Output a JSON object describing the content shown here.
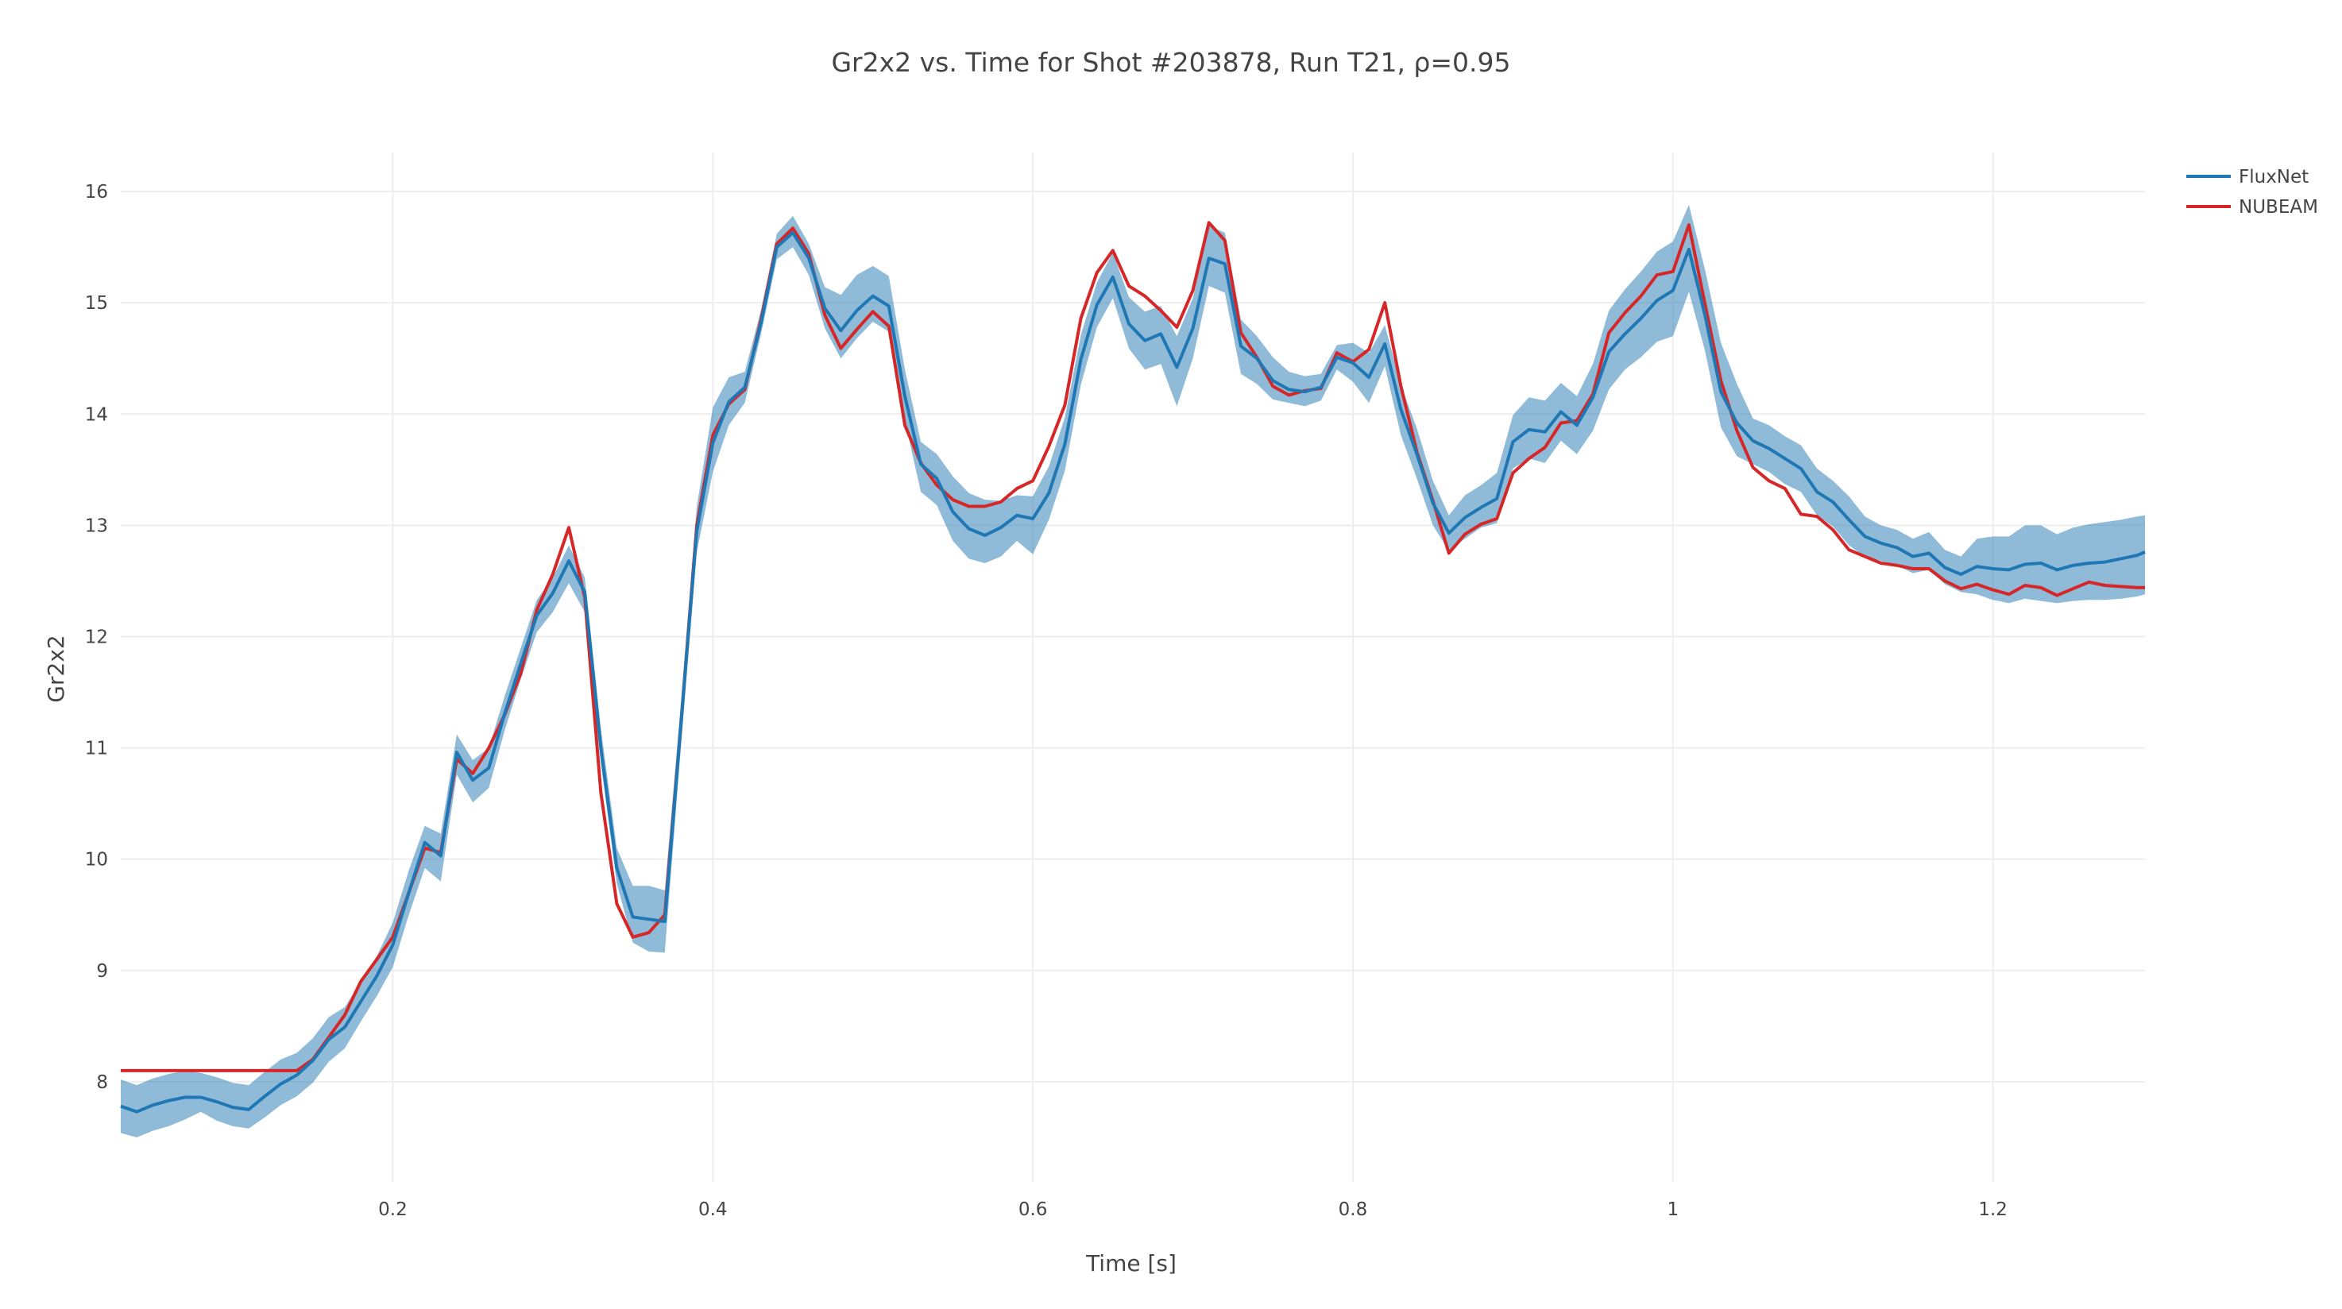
{
  "chart_data": {
    "type": "line",
    "title": "Gr2x2 vs. Time for Shot #203878, Run T21, ρ=0.95",
    "xlabel": "Time [s]",
    "ylabel": "Gr2x2",
    "xlim": [
      0.03,
      1.295
    ],
    "ylim": [
      7.1,
      16.35
    ],
    "xticks": [
      0.2,
      0.4,
      0.6,
      0.8,
      1,
      1.2
    ],
    "xtick_labels": [
      "0.2",
      "0.4",
      "0.6",
      "0.8",
      "1",
      "1.2"
    ],
    "yticks": [
      8,
      9,
      10,
      11,
      12,
      13,
      14,
      15,
      16
    ],
    "ytick_labels": [
      "8",
      "9",
      "10",
      "11",
      "12",
      "13",
      "14",
      "15",
      "16"
    ],
    "grid": true,
    "legend_position": "top-right",
    "colors": {
      "fluxnet": "#1f77b4",
      "band": "#1f77b4",
      "nubeam": "#d62728"
    },
    "series": [
      {
        "name": "FluxNet",
        "color": "#1f77b4",
        "x": [
          0.03,
          0.04,
          0.05,
          0.06,
          0.07,
          0.08,
          0.09,
          0.1,
          0.11,
          0.12,
          0.13,
          0.14,
          0.15,
          0.16,
          0.17,
          0.18,
          0.19,
          0.2,
          0.21,
          0.22,
          0.23,
          0.24,
          0.25,
          0.26,
          0.27,
          0.28,
          0.29,
          0.3,
          0.31,
          0.32,
          0.33,
          0.34,
          0.35,
          0.36,
          0.37,
          0.38,
          0.39,
          0.4,
          0.41,
          0.42,
          0.43,
          0.44,
          0.45,
          0.46,
          0.47,
          0.48,
          0.49,
          0.5,
          0.51,
          0.52,
          0.53,
          0.54,
          0.55,
          0.56,
          0.57,
          0.58,
          0.59,
          0.6,
          0.61,
          0.62,
          0.63,
          0.64,
          0.65,
          0.66,
          0.67,
          0.68,
          0.69,
          0.7,
          0.71,
          0.72,
          0.73,
          0.74,
          0.75,
          0.76,
          0.77,
          0.78,
          0.79,
          0.8,
          0.81,
          0.82,
          0.83,
          0.84,
          0.85,
          0.86,
          0.87,
          0.88,
          0.89,
          0.9,
          0.91,
          0.92,
          0.93,
          0.94,
          0.95,
          0.96,
          0.97,
          0.98,
          0.99,
          1.0,
          1.01,
          1.02,
          1.03,
          1.04,
          1.05,
          1.06,
          1.07,
          1.08,
          1.09,
          1.1,
          1.11,
          1.12,
          1.13,
          1.14,
          1.15,
          1.16,
          1.17,
          1.18,
          1.19,
          1.2,
          1.21,
          1.22,
          1.23,
          1.24,
          1.25,
          1.26,
          1.27,
          1.28,
          1.29,
          1.295
        ],
        "y": [
          7.78,
          7.73,
          7.79,
          7.83,
          7.86,
          7.86,
          7.82,
          7.77,
          7.75,
          7.87,
          7.98,
          8.06,
          8.19,
          8.38,
          8.49,
          8.72,
          8.95,
          9.23,
          9.7,
          10.15,
          10.03,
          10.96,
          10.71,
          10.82,
          11.31,
          11.76,
          12.19,
          12.39,
          12.68,
          12.4,
          11.0,
          9.92,
          9.48,
          9.46,
          9.44,
          11.2,
          12.95,
          13.74,
          14.11,
          14.24,
          14.81,
          15.5,
          15.63,
          15.4,
          14.95,
          14.75,
          14.93,
          15.06,
          14.97,
          14.16,
          13.55,
          13.42,
          13.12,
          12.97,
          12.91,
          12.98,
          13.09,
          13.06,
          13.29,
          13.73,
          14.49,
          14.98,
          15.23,
          14.81,
          14.66,
          14.72,
          14.42,
          14.77,
          15.4,
          15.35,
          14.61,
          14.5,
          14.3,
          14.22,
          14.2,
          14.24,
          14.51,
          14.46,
          14.33,
          14.63,
          14.04,
          13.64,
          13.2,
          12.93,
          13.07,
          13.16,
          13.24,
          13.75,
          13.86,
          13.84,
          14.02,
          13.9,
          14.15,
          14.56,
          14.72,
          14.86,
          15.02,
          15.11,
          15.48,
          14.89,
          14.2,
          13.92,
          13.76,
          13.69,
          13.6,
          13.51,
          13.3,
          13.21,
          13.05,
          12.9,
          12.84,
          12.8,
          12.72,
          12.75,
          12.62,
          12.56,
          12.63,
          12.61,
          12.6,
          12.65,
          12.66,
          12.6,
          12.64,
          12.66,
          12.67,
          12.7,
          12.73,
          12.76
        ]
      },
      {
        "name": "NUBEAM",
        "color": "#d62728",
        "x": [
          0.03,
          0.04,
          0.05,
          0.06,
          0.07,
          0.08,
          0.09,
          0.1,
          0.11,
          0.12,
          0.13,
          0.14,
          0.15,
          0.16,
          0.17,
          0.18,
          0.19,
          0.2,
          0.21,
          0.22,
          0.23,
          0.24,
          0.25,
          0.26,
          0.27,
          0.28,
          0.29,
          0.3,
          0.31,
          0.32,
          0.33,
          0.34,
          0.35,
          0.36,
          0.37,
          0.38,
          0.39,
          0.4,
          0.41,
          0.42,
          0.43,
          0.44,
          0.45,
          0.46,
          0.47,
          0.48,
          0.49,
          0.5,
          0.51,
          0.52,
          0.53,
          0.54,
          0.55,
          0.56,
          0.57,
          0.58,
          0.59,
          0.6,
          0.61,
          0.62,
          0.63,
          0.64,
          0.65,
          0.66,
          0.67,
          0.68,
          0.69,
          0.7,
          0.71,
          0.72,
          0.73,
          0.74,
          0.75,
          0.76,
          0.77,
          0.78,
          0.79,
          0.8,
          0.81,
          0.82,
          0.83,
          0.84,
          0.85,
          0.86,
          0.87,
          0.88,
          0.89,
          0.9,
          0.91,
          0.92,
          0.93,
          0.94,
          0.95,
          0.96,
          0.97,
          0.98,
          0.99,
          1.0,
          1.01,
          1.02,
          1.03,
          1.04,
          1.05,
          1.06,
          1.07,
          1.08,
          1.09,
          1.1,
          1.11,
          1.12,
          1.13,
          1.14,
          1.15,
          1.16,
          1.17,
          1.18,
          1.19,
          1.2,
          1.21,
          1.22,
          1.23,
          1.24,
          1.25,
          1.26,
          1.27,
          1.28,
          1.29,
          1.295
        ],
        "y": [
          8.1,
          8.1,
          8.1,
          8.1,
          8.1,
          8.1,
          8.1,
          8.1,
          8.1,
          8.1,
          8.1,
          8.1,
          8.2,
          8.4,
          8.6,
          8.9,
          9.1,
          9.3,
          9.7,
          10.1,
          10.06,
          10.9,
          10.77,
          11.0,
          11.3,
          11.67,
          12.24,
          12.56,
          12.98,
          12.35,
          10.6,
          9.6,
          9.3,
          9.34,
          9.5,
          11.2,
          13.0,
          13.81,
          14.09,
          14.22,
          14.84,
          15.53,
          15.67,
          15.44,
          14.89,
          14.59,
          14.76,
          14.92,
          14.79,
          13.9,
          13.56,
          13.36,
          13.23,
          13.17,
          13.17,
          13.21,
          13.33,
          13.4,
          13.71,
          14.08,
          14.86,
          15.27,
          15.47,
          15.15,
          15.06,
          14.93,
          14.78,
          15.11,
          15.72,
          15.56,
          14.73,
          14.51,
          14.25,
          14.17,
          14.21,
          14.23,
          14.55,
          14.47,
          14.58,
          15.0,
          14.25,
          13.66,
          13.22,
          12.75,
          12.92,
          13.01,
          13.06,
          13.47,
          13.6,
          13.7,
          13.92,
          13.94,
          14.18,
          14.73,
          14.91,
          15.06,
          15.25,
          15.28,
          15.7,
          14.99,
          14.3,
          13.85,
          13.52,
          13.4,
          13.33,
          13.1,
          13.08,
          12.96,
          12.78,
          12.72,
          12.66,
          12.64,
          12.61,
          12.61,
          12.5,
          12.43,
          12.47,
          12.42,
          12.38,
          12.46,
          12.44,
          12.37,
          12.43,
          12.49,
          12.46,
          12.45,
          12.44,
          12.44
        ]
      }
    ],
    "band": {
      "series": "FluxNet",
      "color": "#1f77b4",
      "opacity": 0.5,
      "x": [
        0.03,
        0.04,
        0.05,
        0.06,
        0.07,
        0.08,
        0.09,
        0.1,
        0.11,
        0.12,
        0.13,
        0.14,
        0.15,
        0.16,
        0.17,
        0.18,
        0.19,
        0.2,
        0.21,
        0.22,
        0.23,
        0.24,
        0.25,
        0.26,
        0.27,
        0.28,
        0.29,
        0.3,
        0.31,
        0.32,
        0.33,
        0.34,
        0.35,
        0.36,
        0.37,
        0.38,
        0.39,
        0.4,
        0.41,
        0.42,
        0.43,
        0.44,
        0.45,
        0.46,
        0.47,
        0.48,
        0.49,
        0.5,
        0.51,
        0.52,
        0.53,
        0.54,
        0.55,
        0.56,
        0.57,
        0.58,
        0.59,
        0.6,
        0.61,
        0.62,
        0.63,
        0.64,
        0.65,
        0.66,
        0.67,
        0.68,
        0.69,
        0.7,
        0.71,
        0.72,
        0.73,
        0.74,
        0.75,
        0.76,
        0.77,
        0.78,
        0.79,
        0.8,
        0.81,
        0.82,
        0.83,
        0.84,
        0.85,
        0.86,
        0.87,
        0.88,
        0.89,
        0.9,
        0.91,
        0.92,
        0.93,
        0.94,
        0.95,
        0.96,
        0.97,
        0.98,
        0.99,
        1.0,
        1.01,
        1.02,
        1.03,
        1.04,
        1.05,
        1.06,
        1.07,
        1.08,
        1.09,
        1.1,
        1.11,
        1.12,
        1.13,
        1.14,
        1.15,
        1.16,
        1.17,
        1.18,
        1.19,
        1.2,
        1.21,
        1.22,
        1.23,
        1.24,
        1.25,
        1.26,
        1.27,
        1.28,
        1.29,
        1.295
      ],
      "upper": [
        8.02,
        7.97,
        8.03,
        8.07,
        8.1,
        8.08,
        8.04,
        7.99,
        7.97,
        8.09,
        8.2,
        8.26,
        8.39,
        8.58,
        8.67,
        8.9,
        9.13,
        9.43,
        9.9,
        10.3,
        10.23,
        11.12,
        10.89,
        11.0,
        11.47,
        11.9,
        12.33,
        12.53,
        12.82,
        12.53,
        11.18,
        10.1,
        9.76,
        9.76,
        9.72,
        11.4,
        13.17,
        14.06,
        14.33,
        14.38,
        14.93,
        15.62,
        15.78,
        15.53,
        15.14,
        15.07,
        15.25,
        15.33,
        15.24,
        14.4,
        13.75,
        13.64,
        13.44,
        13.29,
        13.23,
        13.22,
        13.27,
        13.26,
        13.53,
        13.97,
        14.71,
        15.18,
        15.45,
        15.05,
        14.92,
        14.97,
        14.7,
        15.04,
        15.69,
        15.63,
        14.85,
        14.7,
        14.51,
        14.38,
        14.34,
        14.36,
        14.62,
        14.64,
        14.55,
        14.8,
        14.26,
        13.87,
        13.4,
        13.09,
        13.27,
        13.36,
        13.47,
        13.99,
        14.15,
        14.12,
        14.28,
        14.16,
        14.45,
        14.93,
        15.12,
        15.28,
        15.46,
        15.55,
        15.88,
        15.3,
        14.64,
        14.27,
        13.96,
        13.9,
        13.8,
        13.72,
        13.51,
        13.4,
        13.26,
        13.08,
        13.0,
        12.96,
        12.88,
        12.94,
        12.78,
        12.72,
        12.88,
        12.9,
        12.9,
        13.0,
        13.0,
        12.92,
        12.98,
        13.01,
        13.03,
        13.05,
        13.08,
        13.09
      ],
      "lower": [
        7.54,
        7.5,
        7.56,
        7.6,
        7.66,
        7.73,
        7.65,
        7.6,
        7.58,
        7.68,
        7.79,
        7.87,
        7.99,
        8.18,
        8.3,
        8.54,
        8.77,
        9.03,
        9.5,
        9.92,
        9.8,
        10.76,
        10.51,
        10.64,
        11.16,
        11.62,
        12.04,
        12.22,
        12.48,
        12.22,
        10.86,
        9.78,
        9.25,
        9.17,
        9.16,
        11.0,
        12.76,
        13.48,
        13.9,
        14.1,
        14.71,
        15.39,
        15.5,
        15.25,
        14.77,
        14.5,
        14.68,
        14.83,
        14.74,
        13.94,
        13.3,
        13.18,
        12.86,
        12.7,
        12.66,
        12.72,
        12.86,
        12.74,
        13.05,
        13.49,
        14.26,
        14.78,
        15.04,
        14.59,
        14.4,
        14.45,
        14.07,
        14.5,
        15.15,
        15.09,
        14.36,
        14.27,
        14.13,
        14.1,
        14.07,
        14.12,
        14.4,
        14.29,
        14.1,
        14.43,
        13.81,
        13.42,
        13.0,
        12.77,
        12.88,
        12.98,
        13.02,
        13.51,
        13.6,
        13.56,
        13.76,
        13.64,
        13.85,
        14.22,
        14.4,
        14.51,
        14.65,
        14.7,
        15.1,
        14.57,
        13.88,
        13.62,
        13.55,
        13.48,
        13.37,
        13.3,
        13.09,
        12.99,
        12.82,
        12.72,
        12.68,
        12.64,
        12.57,
        12.6,
        12.47,
        12.4,
        12.38,
        12.33,
        12.3,
        12.34,
        12.32,
        12.3,
        12.32,
        12.33,
        12.33,
        12.34,
        12.36,
        12.38
      ]
    }
  }
}
